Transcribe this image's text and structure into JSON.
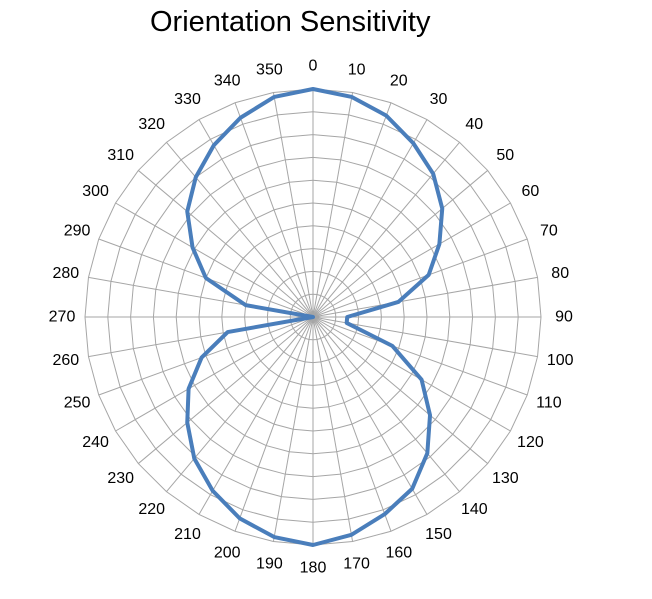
{
  "chart_data": {
    "type": "radar",
    "title": "Orientation Sensitivity",
    "angle_unit": "degrees",
    "categories": [
      "0",
      "10",
      "20",
      "30",
      "40",
      "50",
      "60",
      "70",
      "80",
      "90",
      "100",
      "110",
      "120",
      "130",
      "140",
      "150",
      "160",
      "170",
      "180",
      "190",
      "200",
      "210",
      "220",
      "230",
      "240",
      "250",
      "260",
      "270",
      "280",
      "290",
      "300",
      "310",
      "320",
      "330",
      "340",
      "350"
    ],
    "series": [
      {
        "color": "#4a7ebb",
        "values": [
          1.0,
          0.98,
          0.94,
          0.88,
          0.82,
          0.74,
          0.64,
          0.54,
          0.38,
          0.15,
          0.15,
          0.37,
          0.55,
          0.67,
          0.78,
          0.87,
          0.92,
          0.97,
          1.0,
          0.98,
          0.94,
          0.88,
          0.81,
          0.72,
          0.63,
          0.52,
          0.38,
          0.0,
          0.3,
          0.5,
          0.61,
          0.72,
          0.8,
          0.87,
          0.93,
          0.98
        ]
      }
    ],
    "rlim": [
      0,
      1
    ],
    "rings": 10,
    "grid": true,
    "legend": "none"
  }
}
